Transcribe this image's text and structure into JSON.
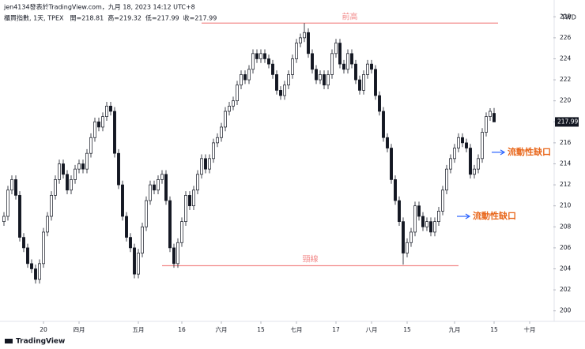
{
  "header": {
    "author": "jen4134發表於TradingView.com，九月 18, 2023 14:12 UTC+8",
    "currency": "TWD",
    "brand": "TradingView"
  },
  "chart_data": {
    "type": "candlestick",
    "title": "櫃買指數, 1天, TPEX",
    "ohlc_labels": [
      "開=",
      "高=",
      "低=",
      "收="
    ],
    "open": [
      208.5,
      209.0,
      211.5,
      212.5,
      211.0,
      207.0,
      206.0,
      204.5,
      204.0,
      203.0,
      204.5,
      207.5,
      209.0,
      211.0,
      212.5,
      214.0,
      213.0,
      211.5,
      212.5,
      213.5,
      214.0,
      213.5,
      215.0,
      216.5,
      218.0,
      217.5,
      218.5,
      219.5,
      219.0,
      215.0,
      212.0,
      209.0,
      207.0,
      206.0,
      203.5,
      205.5,
      208.0,
      210.5,
      212.0,
      211.5,
      212.5,
      213.0,
      210.5,
      206.0,
      204.5,
      206.5,
      208.5,
      211.0,
      210.0,
      211.5,
      213.0,
      214.5,
      213.5,
      214.5,
      216.0,
      216.5,
      217.5,
      219.0,
      219.5,
      220.0,
      221.5,
      222.5,
      222.0,
      223.0,
      224.5,
      224.0,
      224.5,
      224.0,
      223.5,
      222.5,
      221.0,
      220.5,
      221.5,
      222.5,
      224.0,
      225.5,
      226.0,
      226.5,
      224.5,
      223.0,
      222.0,
      222.5,
      221.5,
      222.5,
      224.5,
      225.5,
      223.5,
      223.0,
      224.5,
      223.5,
      222.0,
      221.0,
      222.5,
      223.5,
      223.0,
      220.5,
      219.0,
      216.5,
      215.5,
      212.5,
      210.5,
      208.5,
      205.5,
      206.5,
      207.5,
      210.0,
      209.0,
      208.0,
      208.5,
      207.5,
      208.5,
      209.5,
      211.5,
      213.5,
      214.5,
      215.5,
      216.5,
      216.0,
      215.5,
      213.0,
      213.5,
      214.5,
      217.0,
      218.5,
      218.81
    ],
    "high": [
      209.4,
      211.9,
      212.9,
      212.9,
      211.4,
      207.4,
      206.4,
      204.9,
      204.4,
      204.9,
      207.9,
      209.4,
      211.4,
      212.9,
      214.4,
      214.4,
      213.4,
      212.9,
      213.9,
      214.4,
      214.4,
      215.4,
      216.9,
      218.4,
      218.4,
      218.9,
      219.9,
      219.9,
      219.4,
      215.4,
      212.4,
      209.4,
      207.4,
      206.4,
      205.9,
      208.4,
      210.9,
      212.4,
      212.4,
      212.9,
      213.4,
      213.4,
      210.9,
      206.4,
      206.9,
      208.9,
      211.4,
      211.4,
      211.9,
      213.4,
      214.9,
      214.9,
      214.9,
      216.4,
      216.9,
      217.9,
      219.4,
      219.9,
      220.4,
      221.9,
      222.9,
      222.9,
      223.4,
      224.9,
      224.9,
      224.9,
      224.9,
      224.4,
      223.9,
      222.9,
      221.4,
      221.9,
      222.9,
      224.4,
      225.9,
      226.4,
      227.4,
      226.9,
      224.9,
      223.4,
      222.9,
      222.9,
      222.9,
      224.9,
      225.9,
      225.9,
      223.9,
      224.9,
      224.9,
      223.9,
      222.4,
      222.9,
      223.9,
      223.9,
      223.4,
      220.9,
      219.4,
      216.9,
      215.9,
      212.9,
      210.9,
      208.9,
      206.9,
      207.9,
      210.4,
      210.4,
      209.4,
      208.9,
      208.9,
      208.9,
      209.9,
      211.9,
      213.9,
      214.9,
      215.9,
      216.9,
      216.9,
      216.4,
      215.9,
      213.9,
      214.9,
      217.4,
      218.9,
      219.3,
      219.32
    ],
    "low": [
      208.1,
      208.6,
      211.1,
      210.6,
      206.6,
      205.6,
      204.1,
      203.6,
      202.6,
      202.6,
      204.1,
      207.1,
      208.6,
      210.6,
      212.1,
      212.6,
      211.1,
      211.1,
      212.1,
      213.1,
      213.1,
      213.1,
      214.6,
      216.1,
      217.1,
      217.1,
      218.1,
      218.6,
      214.6,
      211.6,
      208.6,
      206.6,
      205.6,
      203.1,
      203.1,
      205.1,
      207.6,
      210.1,
      211.1,
      211.1,
      212.1,
      210.1,
      205.6,
      204.1,
      204.1,
      206.1,
      208.1,
      209.6,
      209.6,
      211.1,
      212.6,
      213.1,
      213.1,
      214.1,
      215.6,
      216.1,
      217.1,
      218.6,
      219.1,
      219.6,
      221.1,
      221.6,
      221.6,
      222.6,
      223.6,
      223.6,
      223.6,
      223.1,
      222.1,
      220.6,
      220.1,
      220.1,
      221.1,
      222.1,
      223.6,
      225.1,
      225.6,
      224.1,
      222.6,
      221.6,
      221.6,
      221.1,
      221.1,
      222.1,
      224.1,
      223.1,
      222.6,
      222.6,
      223.1,
      221.6,
      220.6,
      220.6,
      222.1,
      222.6,
      220.1,
      218.6,
      216.1,
      215.1,
      212.1,
      210.1,
      208.1,
      204.4,
      205.1,
      206.1,
      207.1,
      208.6,
      207.6,
      207.6,
      207.1,
      207.1,
      208.1,
      209.1,
      211.1,
      213.1,
      214.1,
      215.1,
      215.6,
      215.1,
      212.6,
      212.6,
      213.1,
      214.1,
      216.6,
      218.1,
      217.99
    ],
    "close": [
      209.0,
      211.5,
      212.5,
      211.0,
      207.0,
      206.0,
      204.5,
      204.0,
      203.0,
      204.5,
      207.5,
      209.0,
      211.0,
      212.5,
      214.0,
      213.0,
      211.5,
      212.5,
      213.5,
      214.0,
      213.5,
      215.0,
      216.5,
      218.0,
      217.5,
      218.5,
      219.5,
      219.0,
      215.0,
      212.0,
      209.0,
      207.0,
      206.0,
      203.5,
      205.5,
      208.0,
      210.5,
      212.0,
      211.5,
      212.5,
      213.0,
      210.5,
      206.0,
      204.5,
      206.5,
      208.5,
      211.0,
      210.0,
      211.5,
      213.0,
      214.5,
      213.5,
      214.5,
      216.0,
      216.5,
      217.5,
      219.0,
      219.5,
      220.0,
      221.5,
      222.5,
      222.0,
      223.0,
      224.5,
      224.0,
      224.5,
      224.0,
      223.5,
      222.5,
      221.0,
      220.5,
      221.5,
      222.5,
      224.0,
      225.5,
      226.0,
      226.5,
      224.5,
      223.0,
      222.0,
      222.5,
      221.5,
      222.5,
      224.5,
      225.5,
      223.5,
      223.0,
      224.5,
      223.5,
      222.0,
      221.0,
      222.5,
      223.5,
      223.0,
      220.5,
      219.0,
      216.5,
      215.5,
      212.5,
      210.5,
      208.5,
      205.5,
      206.5,
      207.5,
      210.0,
      209.0,
      208.0,
      208.5,
      207.5,
      208.5,
      209.5,
      211.5,
      213.5,
      214.5,
      215.5,
      216.5,
      216.0,
      215.5,
      213.0,
      213.5,
      214.5,
      217.0,
      218.5,
      219.0,
      217.99
    ],
    "up_color": "#ffffff",
    "down_color": "#131722",
    "ylim": [
      199,
      229.6
    ],
    "yticks": [
      200,
      202,
      204,
      206,
      208,
      210,
      212,
      214,
      216,
      218,
      220,
      222,
      224,
      226,
      228
    ],
    "xlim": [
      -1,
      139
    ],
    "xticks": [
      {
        "value": 10,
        "label": "20"
      },
      {
        "value": 19,
        "label": "四月"
      },
      {
        "value": 34,
        "label": "五月"
      },
      {
        "value": 45,
        "label": "16"
      },
      {
        "value": 55,
        "label": "六月"
      },
      {
        "value": 65,
        "label": "15"
      },
      {
        "value": 74,
        "label": "七月"
      },
      {
        "value": 84,
        "label": "17"
      },
      {
        "value": 93,
        "label": "八月"
      },
      {
        "value": 102,
        "label": "15"
      },
      {
        "value": 114,
        "label": "九月"
      },
      {
        "value": 124,
        "label": "15"
      },
      {
        "value": 133,
        "label": "十月"
      }
    ],
    "annotations": [
      {
        "text": "前高",
        "value": 227.4,
        "x": [
          50,
          125
        ],
        "color": "#f28b8b"
      },
      {
        "text": "頸線",
        "value": 204.3,
        "x": [
          40,
          115
        ],
        "color": "#f28b8b"
      }
    ],
    "gaps": [
      {
        "text": "流動性缺口",
        "value": 215.1,
        "color": "#e8661a"
      },
      {
        "text": "流動性缺口",
        "value": 209.0,
        "color": "#e8661a"
      }
    ]
  }
}
